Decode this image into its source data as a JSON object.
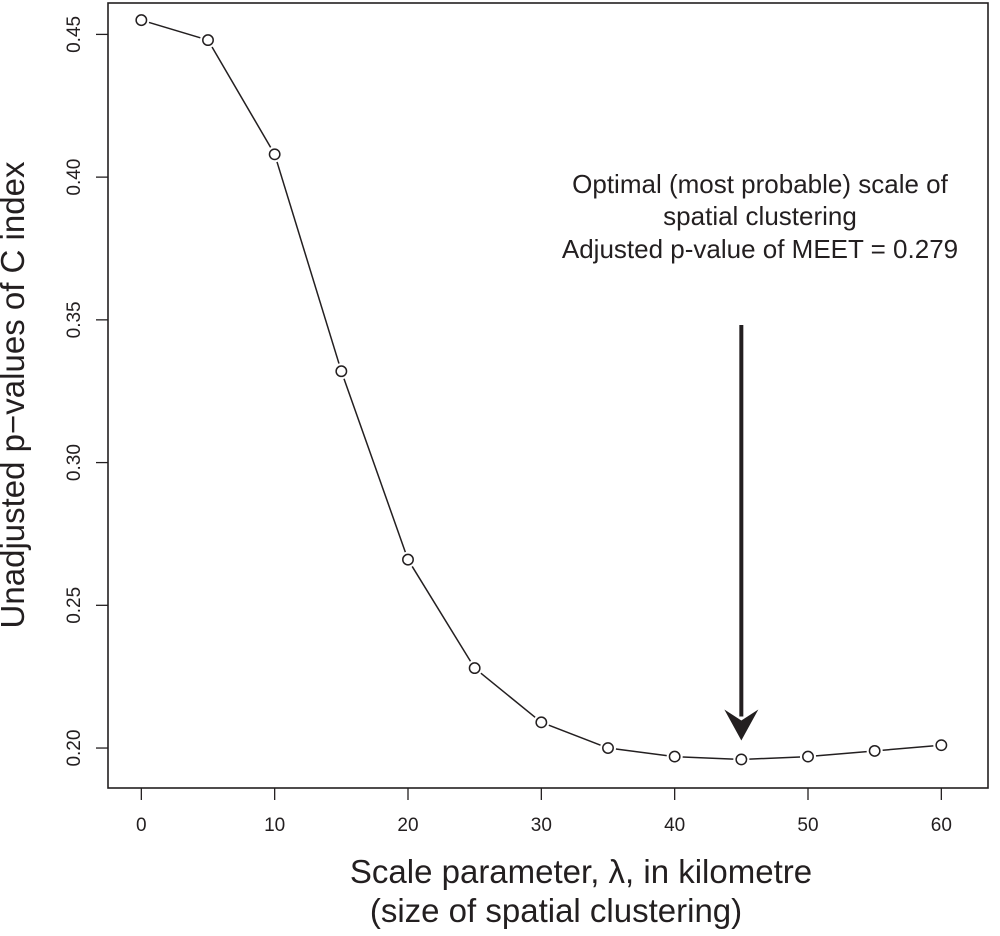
{
  "chart_data": {
    "type": "line",
    "title": "",
    "xlabel": [
      "Scale parameter, λ, in kilometre",
      "(size of spatial clustering)"
    ],
    "ylabel": "Unadjusted p−values of C index",
    "xlim": [
      -2.5,
      63.5
    ],
    "ylim": [
      0.186,
      0.461
    ],
    "xticks": [
      0,
      10,
      20,
      30,
      40,
      50,
      60
    ],
    "yticks": [
      0.2,
      0.25,
      0.3,
      0.35,
      0.4,
      0.45
    ],
    "ytick_labels": [
      "0.20",
      "0.25",
      "0.30",
      "0.35",
      "0.40",
      "0.45"
    ],
    "grid": false,
    "legend": "none",
    "marker": "open-circle",
    "line_color": "#231f20",
    "series": [
      {
        "x": [
          0,
          5,
          10,
          15,
          20,
          25,
          30,
          35,
          40,
          45,
          50,
          55,
          60
        ],
        "values": [
          0.455,
          0.448,
          0.408,
          0.332,
          0.266,
          0.228,
          0.209,
          0.2,
          0.197,
          0.196,
          0.197,
          0.199,
          0.201
        ]
      }
    ],
    "annotation": {
      "lines": [
        "Optimal (most probable) scale of",
        "spatial clustering",
        "Adjusted p-value of MEET = 0.279"
      ],
      "arrow_target": {
        "x": 45,
        "y": 0.196
      }
    }
  }
}
